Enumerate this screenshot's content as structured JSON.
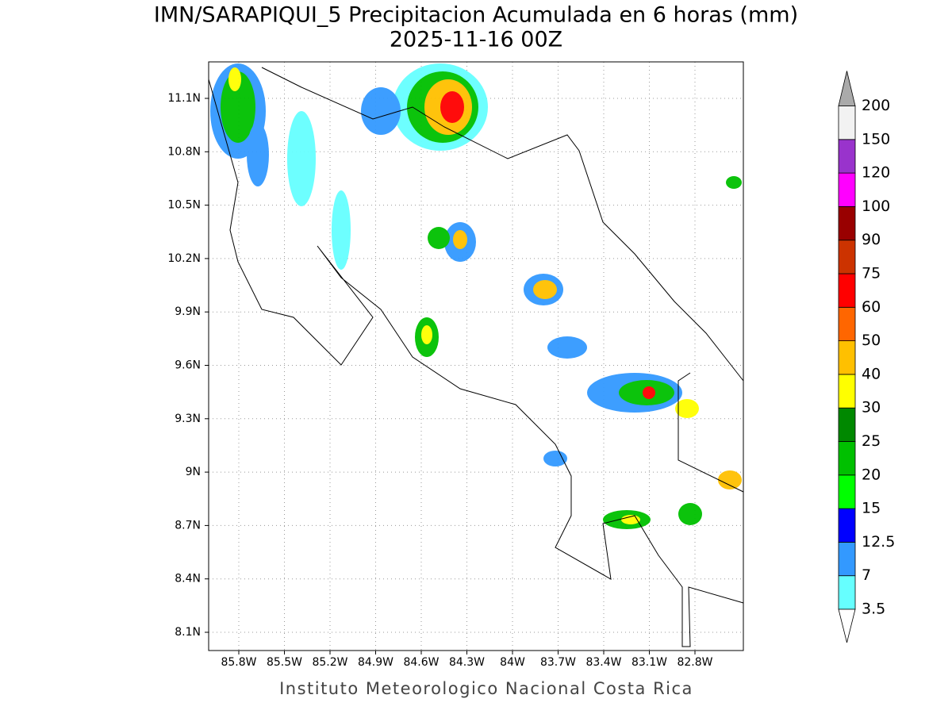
{
  "title": "IMN/SARAPIQUI_5 Precipitacion Acumulada en 6 horas (mm)",
  "subtitle": "2025-11-16 00Z",
  "map": {
    "lat_labels": [
      "11.1N",
      "10.8N",
      "10.5N",
      "10.2N",
      "9.9N",
      "9.6N",
      "9.3N",
      "9N",
      "8.7N",
      "8.4N",
      "8.1N"
    ],
    "lon_labels": [
      "85.8W",
      "85.5W",
      "85.2W",
      "84.9W",
      "84.6W",
      "84.3W",
      "84W",
      "83.7W",
      "83.4W",
      "83.1W",
      "82.8W"
    ]
  },
  "colorbar": {
    "levels": [
      3.5,
      7,
      12.5,
      15,
      20,
      25,
      30,
      40,
      50,
      60,
      75,
      90,
      100,
      120,
      150,
      200
    ],
    "colors": [
      "#66ffff",
      "#3399ff",
      "#0000ff",
      "#00ff00",
      "#00c000",
      "#008800",
      "#ffff00",
      "#ffc000",
      "#ff6600",
      "#ff0000",
      "#cc3300",
      "#990000",
      "#ff00ff",
      "#9933cc",
      "#f2f2f2"
    ],
    "under_color": "#ffffff",
    "over_color": "#aaaaaa"
  },
  "footer": "Instituto Meteorologico Nacional Costa Rica"
}
